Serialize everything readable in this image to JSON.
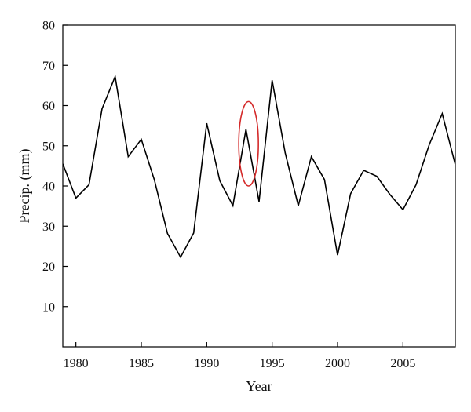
{
  "chart_data": {
    "type": "line",
    "title": "",
    "xlabel": "Year",
    "ylabel": "Precip. (mm)",
    "xlim": [
      1979,
      2009
    ],
    "ylim": [
      0,
      80
    ],
    "x_ticks": [
      1980,
      1985,
      1990,
      1995,
      2000,
      2005
    ],
    "y_ticks": [
      10,
      20,
      30,
      40,
      50,
      60,
      70,
      80
    ],
    "grid": false,
    "legend": "none",
    "series": [
      {
        "color": "#000000",
        "x": [
          1979,
          1980,
          1981,
          1982,
          1983,
          1984,
          1985,
          1986,
          1987,
          1988,
          1989,
          1990,
          1991,
          1992,
          1993,
          1994,
          1995,
          1996,
          1997,
          1998,
          1999,
          2000,
          2001,
          2002,
          2003,
          2004,
          2005,
          2006,
          2007,
          2008,
          2009
        ],
        "y": [
          45.5,
          37,
          40.3,
          59.2,
          67.2,
          47.3,
          51.6,
          41.5,
          28.2,
          22.3,
          28.3,
          55.6,
          41.3,
          35.1,
          54.1,
          36.1,
          66.3,
          48.2,
          35.1,
          47.3,
          41.6,
          22.8,
          38.1,
          43.9,
          42.4,
          37.9,
          34.1,
          40.3,
          50.2,
          58,
          45.3
        ]
      }
    ],
    "annotations": [
      {
        "shape": "ellipse",
        "color": "#d42a2a",
        "x_center": 1993.2,
        "y_center": 50.5,
        "x_radius": 0.75,
        "y_radius": 10.5
      }
    ]
  }
}
